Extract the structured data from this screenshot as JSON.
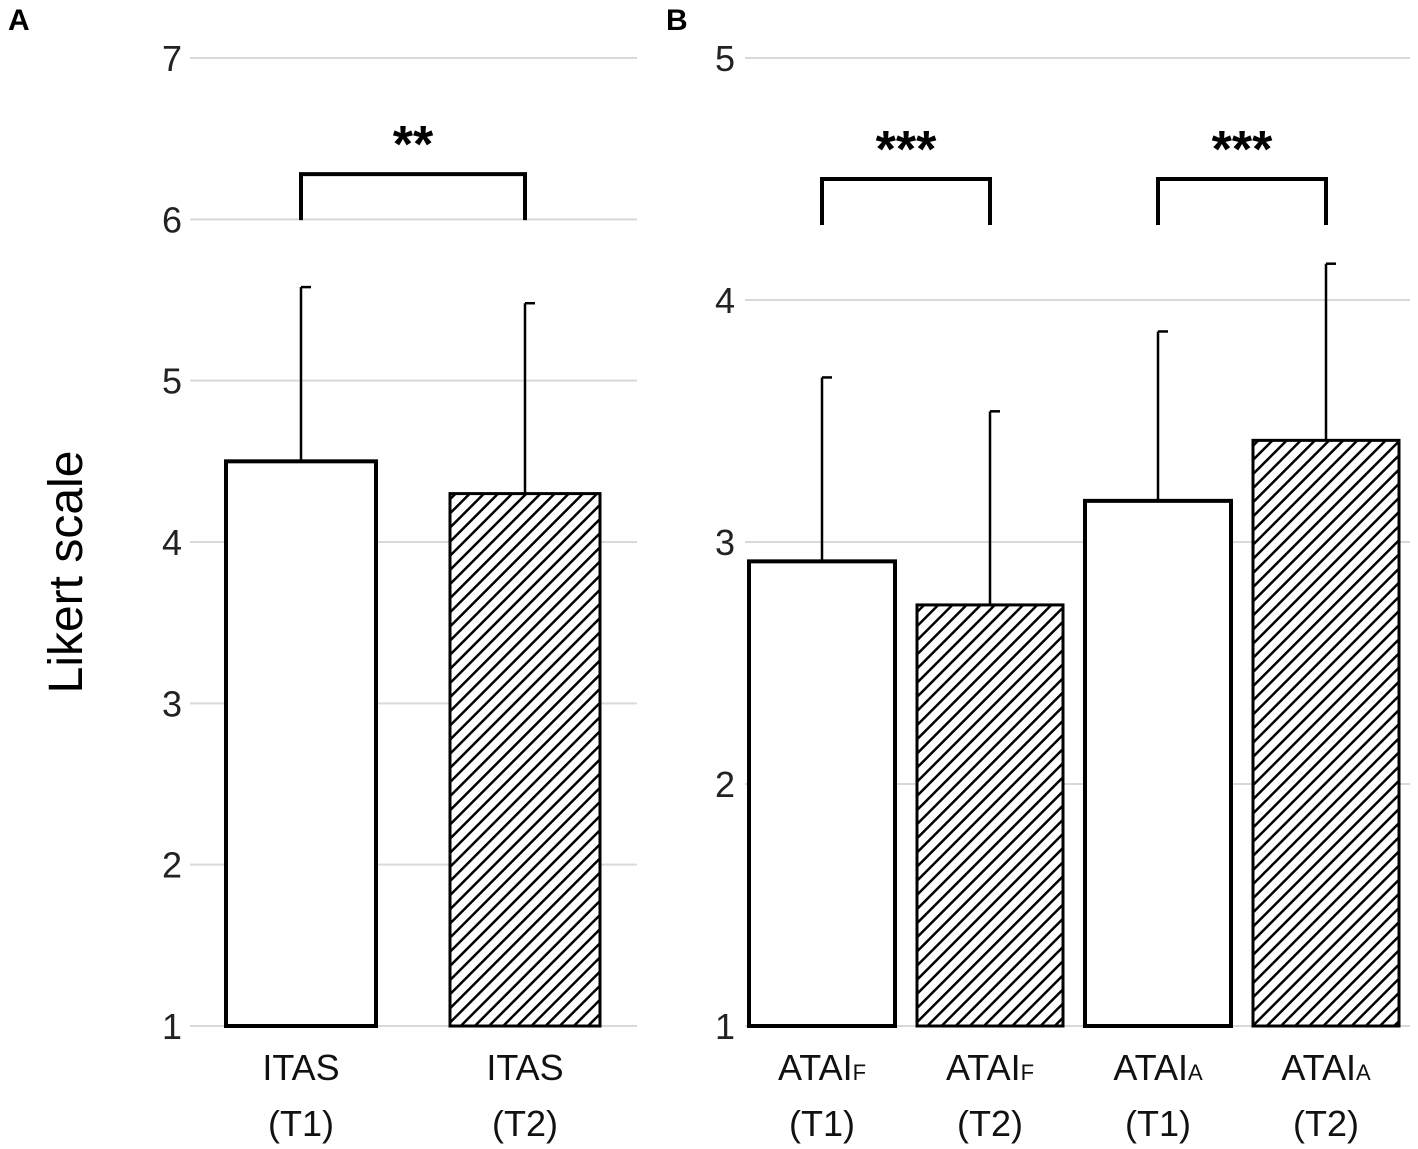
{
  "chart_data": [
    {
      "type": "bar",
      "panel": "A",
      "ylabel": "Likert scale",
      "ylim": [
        1,
        7
      ],
      "yticks": [
        1,
        2,
        3,
        4,
        5,
        6,
        7
      ],
      "grid": true,
      "categories": [
        {
          "main": "ITAS",
          "sub": "",
          "time": "(T1)",
          "fill": "open"
        },
        {
          "main": "ITAS",
          "sub": "",
          "time": "(T2)",
          "fill": "hatched"
        }
      ],
      "values": [
        4.5,
        4.3
      ],
      "error": [
        1.08,
        1.18
      ],
      "significance": [
        {
          "from": 0,
          "to": 1,
          "label": "**",
          "level": 6.28
        }
      ]
    },
    {
      "type": "bar",
      "panel": "B",
      "ylabel": "",
      "ylim": [
        1,
        5
      ],
      "yticks": [
        1,
        2,
        3,
        4,
        5
      ],
      "grid": true,
      "categories": [
        {
          "main": "ATAI",
          "sub": "F",
          "time": "(T1)",
          "fill": "open"
        },
        {
          "main": "ATAI",
          "sub": "F",
          "time": "(T2)",
          "fill": "hatched"
        },
        {
          "main": "ATAI",
          "sub": "A",
          "time": "(T1)",
          "fill": "open"
        },
        {
          "main": "ATAI",
          "sub": "A",
          "time": "(T2)",
          "fill": "hatched"
        }
      ],
      "values": [
        2.92,
        2.74,
        3.17,
        3.42
      ],
      "error": [
        0.76,
        0.8,
        0.7,
        0.73
      ],
      "significance": [
        {
          "from": 0,
          "to": 1,
          "label": "***",
          "level": 4.5
        },
        {
          "from": 2,
          "to": 3,
          "label": "***",
          "level": 4.5
        }
      ]
    }
  ]
}
